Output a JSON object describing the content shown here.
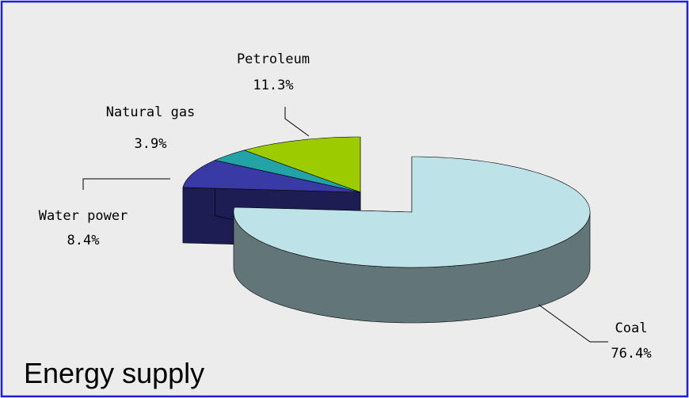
{
  "chart_data": {
    "type": "pie",
    "title": "Energy supply",
    "categories": [
      "Coal",
      "Water power",
      "Natural gas",
      "Petroleum"
    ],
    "values": [
      76.4,
      8.4,
      3.9,
      11.3
    ],
    "value_labels": [
      "76.4%",
      "8.4%",
      "3.9%",
      "11.3%"
    ],
    "colors": [
      "#bde3e8",
      "#3a3aa6",
      "#23a3a6",
      "#9ccc00"
    ]
  }
}
